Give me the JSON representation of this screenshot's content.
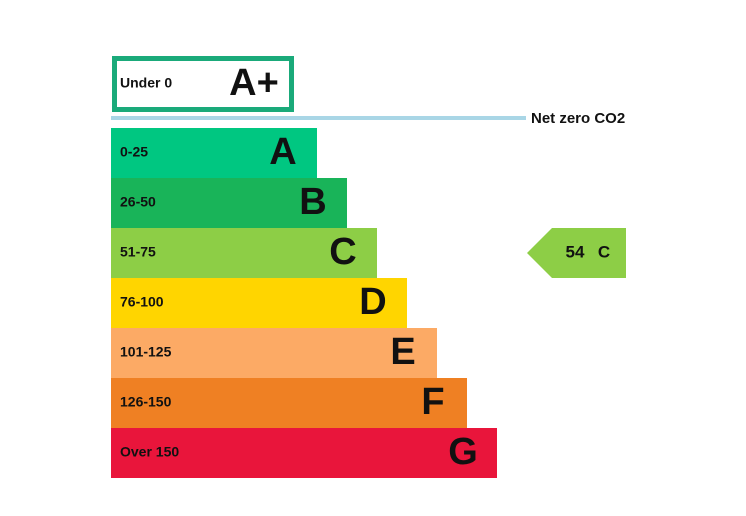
{
  "top_band": {
    "range": "Under 0",
    "letter": "A+"
  },
  "net_zero_label": "Net zero CO2",
  "bands": [
    {
      "range": "0-25",
      "letter": "A"
    },
    {
      "range": "26-50",
      "letter": "B"
    },
    {
      "range": "51-75",
      "letter": "C"
    },
    {
      "range": "76-100",
      "letter": "D"
    },
    {
      "range": "101-125",
      "letter": "E"
    },
    {
      "range": "126-150",
      "letter": "F"
    },
    {
      "range": "Over 150",
      "letter": "G"
    }
  ],
  "indicator": {
    "score": "54",
    "letter": "C"
  }
}
